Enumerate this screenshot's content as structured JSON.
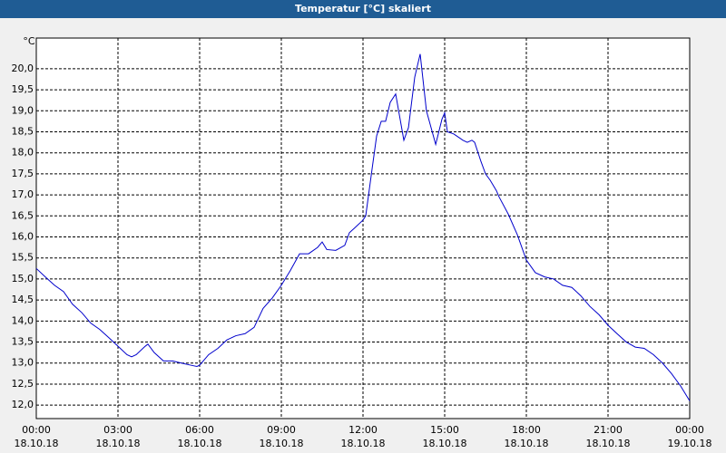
{
  "chart_data": {
    "type": "line",
    "title": "Temperatur [°C] skaliert",
    "y_label": "°C",
    "x": [
      0,
      0.33,
      0.67,
      1,
      1.33,
      1.67,
      2,
      2.33,
      2.67,
      3,
      3.33,
      3.5,
      3.67,
      4,
      4.1,
      4.33,
      4.67,
      5,
      5.33,
      5.67,
      5.9,
      6,
      6.33,
      6.67,
      7,
      7.33,
      7.67,
      8,
      8.33,
      8.67,
      9,
      9.33,
      9.67,
      10,
      10.33,
      10.5,
      10.67,
      11,
      11.33,
      11.5,
      11.67,
      12,
      12.1,
      12.33,
      12.5,
      12.67,
      12.83,
      13,
      13.2,
      13.5,
      13.67,
      13.9,
      14.1,
      14.33,
      14.67,
      14.9,
      15,
      15.1,
      15.33,
      15.67,
      15.83,
      16,
      16.1,
      16.33,
      16.5,
      16.67,
      16.9,
      17,
      17.33,
      17.67,
      18,
      18.33,
      18.67,
      19,
      19.33,
      19.67,
      20,
      20.33,
      20.67,
      21,
      21.33,
      21.67,
      22,
      22.33,
      22.67,
      23,
      23.33,
      23.67,
      24
    ],
    "series": [
      {
        "name": "Temperatur",
        "color": "#0000cc",
        "values": [
          15.25,
          15.05,
          14.85,
          14.7,
          14.4,
          14.2,
          13.95,
          13.8,
          13.6,
          13.4,
          13.2,
          13.15,
          13.2,
          13.4,
          13.45,
          13.25,
          13.05,
          13.05,
          13.0,
          12.95,
          12.92,
          12.95,
          13.2,
          13.35,
          13.55,
          13.65,
          13.7,
          13.85,
          14.3,
          14.55,
          14.85,
          15.2,
          15.6,
          15.6,
          15.75,
          15.88,
          15.7,
          15.68,
          15.8,
          16.1,
          16.2,
          16.4,
          16.5,
          17.6,
          18.4,
          18.75,
          18.75,
          19.2,
          19.4,
          18.3,
          18.6,
          19.8,
          20.35,
          19.0,
          18.2,
          18.8,
          18.95,
          18.5,
          18.45,
          18.3,
          18.25,
          18.3,
          18.25,
          17.8,
          17.5,
          17.35,
          17.1,
          16.95,
          16.55,
          16.05,
          15.45,
          15.15,
          15.05,
          15.0,
          14.85,
          14.8,
          14.6,
          14.35,
          14.15,
          13.9,
          13.7,
          13.5,
          13.38,
          13.35,
          13.2,
          13.0,
          12.75,
          12.45,
          12.1
        ]
      }
    ],
    "xlim": [
      0,
      24
    ],
    "xticks": [
      {
        "value": 0,
        "label": "00:00\n18.10.18"
      },
      {
        "value": 3,
        "label": "03:00\n18.10.18"
      },
      {
        "value": 6,
        "label": "06:00\n18.10.18"
      },
      {
        "value": 9,
        "label": "09:00\n18.10.18"
      },
      {
        "value": 12,
        "label": "12:00\n18.10.18"
      },
      {
        "value": 15,
        "label": "15:00\n18.10.18"
      },
      {
        "value": 18,
        "label": "18:00\n18.10.18"
      },
      {
        "value": 21,
        "label": "21:00\n18.10.18"
      },
      {
        "value": 24,
        "label": "00:00\n19.10.18"
      }
    ],
    "ylim": [
      11.68,
      20.73
    ],
    "yticks": [
      {
        "value": 12,
        "label": "12,0"
      },
      {
        "value": 12.5,
        "label": "12,5"
      },
      {
        "value": 13,
        "label": "13,0"
      },
      {
        "value": 13.5,
        "label": "13,5"
      },
      {
        "value": 14,
        "label": "14,0"
      },
      {
        "value": 14.5,
        "label": "14,5"
      },
      {
        "value": 15,
        "label": "15,0"
      },
      {
        "value": 15.5,
        "label": "15,5"
      },
      {
        "value": 16,
        "label": "16,0"
      },
      {
        "value": 16.5,
        "label": "16,5"
      },
      {
        "value": 17,
        "label": "17,0"
      },
      {
        "value": 17.5,
        "label": "17,5"
      },
      {
        "value": 18,
        "label": "18,0"
      },
      {
        "value": 18.5,
        "label": "18,5"
      },
      {
        "value": 19,
        "label": "19,0"
      },
      {
        "value": 19.5,
        "label": "19,5"
      },
      {
        "value": 20,
        "label": "20,0"
      }
    ],
    "grid": true
  }
}
